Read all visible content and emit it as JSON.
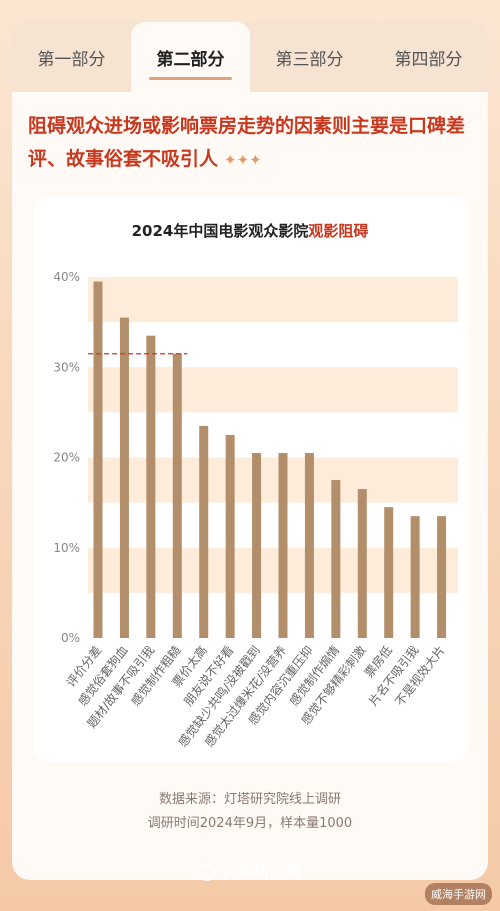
{
  "tabs": [
    "第一部分",
    "第二部分",
    "第三部分",
    "第四部分"
  ],
  "active_tab": 1,
  "headline": "阻碍观众进场或影响票房走势的因素则主要是口碑差评、故事俗套不吸引人",
  "headline_decoration": "✦✦✦",
  "chart_title_prefix": "2024年中国电影观众影院",
  "chart_title_highlight": "观影阻碍",
  "source_line1": "数据来源：灯塔研究院线上调研",
  "source_line2": "调研时间2024年9月，样本量1000",
  "brand": "灯塔研究院",
  "watermark": "威海手游网",
  "colors": {
    "bar": "#b38e6b",
    "band": "#fcecd9",
    "reference": "#c8381f",
    "headline": "#c8381f"
  },
  "chart_data": {
    "type": "bar",
    "title": "2024年中国电影观众影院观影阻碍",
    "xlabel": "",
    "ylabel": "",
    "ylim": [
      0,
      40
    ],
    "yticks": [
      "0%",
      "10%",
      "20%",
      "30%",
      "40%"
    ],
    "categories": [
      "评价分差",
      "感觉俗套狗血",
      "题材/故事不吸引我",
      "感觉制作粗糙",
      "票价太高",
      "朋友说不好看",
      "感觉缺少共鸣/没被戳到",
      "感觉太过爆米花/没营养",
      "感觉内容沉重压抑",
      "感觉制作煽情",
      "感觉不够精彩刺激",
      "票房低",
      "片名不吸引我",
      "不是视效大片"
    ],
    "values": [
      39.5,
      35.5,
      33.5,
      31.5,
      23.5,
      22.5,
      20.5,
      20.5,
      20.5,
      17.5,
      16.5,
      14.5,
      13.5,
      13.5
    ],
    "reference_line": 31.5
  }
}
